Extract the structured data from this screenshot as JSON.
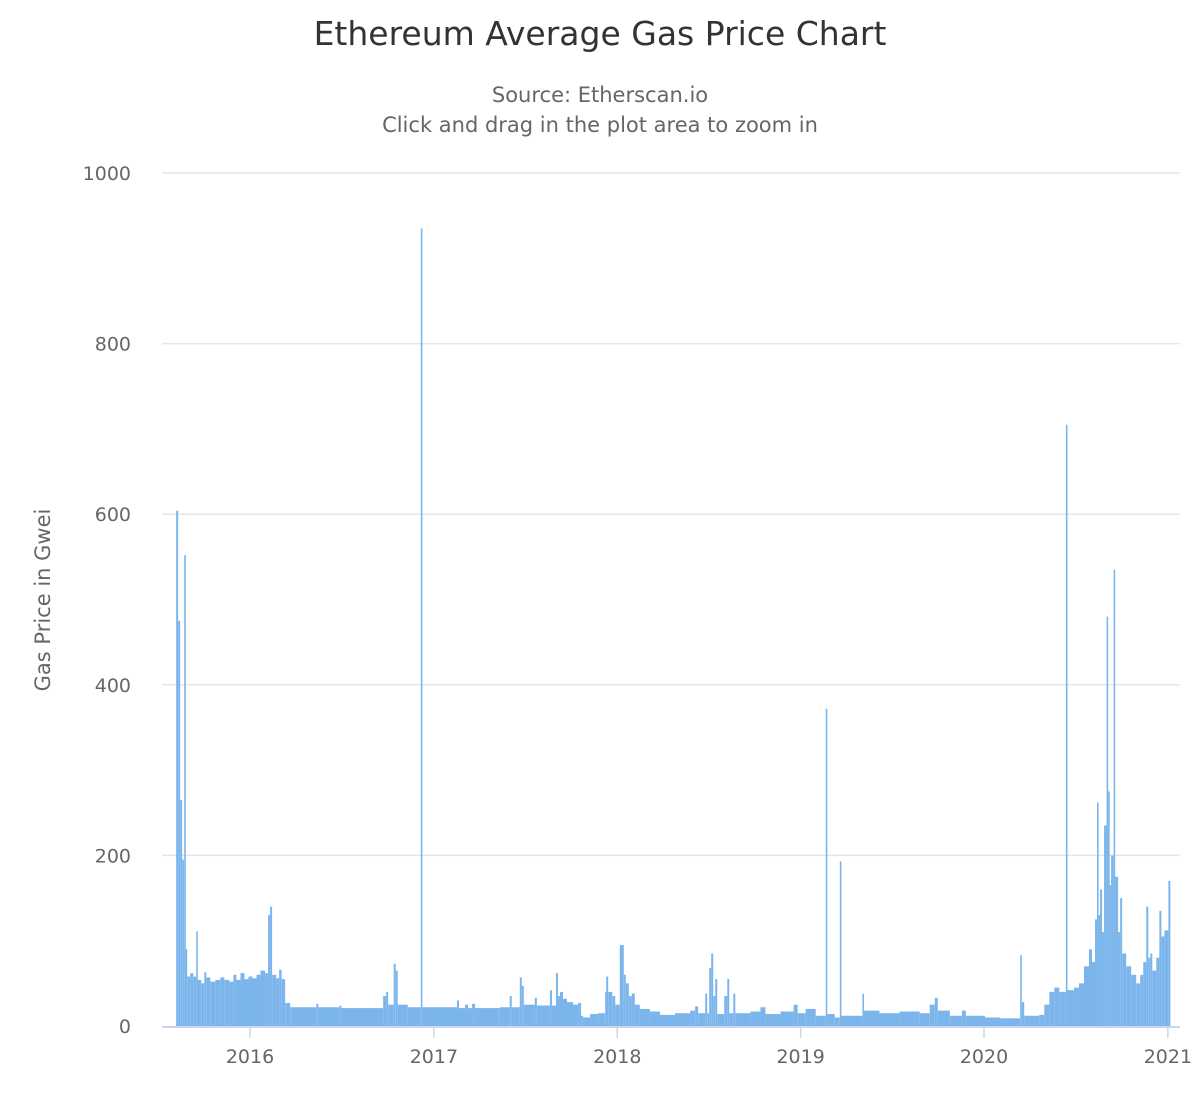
{
  "chart_data": {
    "type": "bar",
    "title": "Ethereum Average Gas Price Chart",
    "subtitle": "Source: Etherscan.io",
    "subtitle2": "Click and drag in the plot area to zoom in",
    "xlabel": "",
    "ylabel": "Gas Price in Gwei",
    "ylim": [
      0,
      1000
    ],
    "yticks": [
      0,
      200,
      400,
      600,
      800,
      1000
    ],
    "xlim": [
      "2015-07-16",
      "2021-01-20"
    ],
    "xticks": [
      {
        "date": "2016-01-01",
        "label": "2016"
      },
      {
        "date": "2017-01-01",
        "label": "2017"
      },
      {
        "date": "2018-01-01",
        "label": "2018"
      },
      {
        "date": "2019-01-01",
        "label": "2019"
      },
      {
        "date": "2020-01-01",
        "label": "2020"
      },
      {
        "date": "2021-01-01",
        "label": "2021"
      }
    ],
    "grid": true,
    "legend": "none",
    "color": "#7cb5ec",
    "end_date": "2021-01-06",
    "points": [
      [
        "2015-08-07",
        604
      ],
      [
        "2015-08-11",
        475
      ],
      [
        "2015-08-15",
        265
      ],
      [
        "2015-08-19",
        195
      ],
      [
        "2015-08-23",
        552
      ],
      [
        "2015-08-25",
        90
      ],
      [
        "2015-08-29",
        58
      ],
      [
        "2015-09-04",
        62
      ],
      [
        "2015-09-10",
        58
      ],
      [
        "2015-09-16",
        111
      ],
      [
        "2015-09-18",
        54
      ],
      [
        "2015-09-26",
        50
      ],
      [
        "2015-10-02",
        63
      ],
      [
        "2015-10-06",
        57
      ],
      [
        "2015-10-14",
        52
      ],
      [
        "2015-10-24",
        54
      ],
      [
        "2015-11-03",
        57
      ],
      [
        "2015-11-11",
        54
      ],
      [
        "2015-11-21",
        52
      ],
      [
        "2015-11-29",
        60
      ],
      [
        "2015-12-05",
        54
      ],
      [
        "2015-12-13",
        62
      ],
      [
        "2015-12-21",
        55
      ],
      [
        "2015-12-29",
        58
      ],
      [
        "2016-01-06",
        56
      ],
      [
        "2016-01-14",
        60
      ],
      [
        "2016-01-22",
        65
      ],
      [
        "2016-01-31",
        62
      ],
      [
        "2016-02-06",
        130
      ],
      [
        "2016-02-10",
        140
      ],
      [
        "2016-02-14",
        60
      ],
      [
        "2016-02-22",
        56
      ],
      [
        "2016-02-28",
        66
      ],
      [
        "2016-03-04",
        55
      ],
      [
        "2016-03-11",
        27
      ],
      [
        "2016-03-21",
        22
      ],
      [
        "2016-05-12",
        26
      ],
      [
        "2016-05-16",
        22
      ],
      [
        "2016-06-27",
        24
      ],
      [
        "2016-07-01",
        21
      ],
      [
        "2016-09-22",
        35
      ],
      [
        "2016-09-28",
        40
      ],
      [
        "2016-10-02",
        25
      ],
      [
        "2016-10-13",
        73
      ],
      [
        "2016-10-17",
        65
      ],
      [
        "2016-10-21",
        25
      ],
      [
        "2016-11-10",
        22
      ],
      [
        "2016-12-06",
        935
      ],
      [
        "2016-12-09",
        22
      ],
      [
        "2017-02-16",
        30
      ],
      [
        "2017-02-20",
        21
      ],
      [
        "2017-03-04",
        25
      ],
      [
        "2017-03-10",
        21
      ],
      [
        "2017-03-18",
        26
      ],
      [
        "2017-03-24",
        21
      ],
      [
        "2017-05-12",
        22
      ],
      [
        "2017-06-01",
        35
      ],
      [
        "2017-06-05",
        22
      ],
      [
        "2017-06-21",
        57
      ],
      [
        "2017-06-25",
        47
      ],
      [
        "2017-06-29",
        25
      ],
      [
        "2017-07-21",
        33
      ],
      [
        "2017-07-25",
        24
      ],
      [
        "2017-08-20",
        42
      ],
      [
        "2017-08-24",
        24
      ],
      [
        "2017-09-01",
        62
      ],
      [
        "2017-09-05",
        35
      ],
      [
        "2017-09-09",
        40
      ],
      [
        "2017-09-15",
        32
      ],
      [
        "2017-09-23",
        28
      ],
      [
        "2017-10-05",
        25
      ],
      [
        "2017-10-15",
        27
      ],
      [
        "2017-10-21",
        12
      ],
      [
        "2017-10-25",
        10
      ],
      [
        "2017-11-08",
        14
      ],
      [
        "2017-11-24",
        15
      ],
      [
        "2017-12-08",
        40
      ],
      [
        "2017-12-10",
        58
      ],
      [
        "2017-12-14",
        40
      ],
      [
        "2017-12-22",
        35
      ],
      [
        "2017-12-28",
        25
      ],
      [
        "2018-01-06",
        95
      ],
      [
        "2018-01-14",
        60
      ],
      [
        "2018-01-18",
        50
      ],
      [
        "2018-01-24",
        35
      ],
      [
        "2018-01-30",
        38
      ],
      [
        "2018-02-05",
        25
      ],
      [
        "2018-02-15",
        20
      ],
      [
        "2018-03-07",
        17
      ],
      [
        "2018-03-27",
        13
      ],
      [
        "2018-04-26",
        15
      ],
      [
        "2018-05-26",
        18
      ],
      [
        "2018-06-05",
        23
      ],
      [
        "2018-06-11",
        15
      ],
      [
        "2018-06-25",
        38
      ],
      [
        "2018-06-29",
        15
      ],
      [
        "2018-07-03",
        68
      ],
      [
        "2018-07-07",
        85
      ],
      [
        "2018-07-11",
        35
      ],
      [
        "2018-07-15",
        55
      ],
      [
        "2018-07-19",
        14
      ],
      [
        "2018-08-02",
        35
      ],
      [
        "2018-08-08",
        55
      ],
      [
        "2018-08-12",
        15
      ],
      [
        "2018-08-20",
        38
      ],
      [
        "2018-08-24",
        15
      ],
      [
        "2018-09-23",
        17
      ],
      [
        "2018-10-13",
        22
      ],
      [
        "2018-10-23",
        14
      ],
      [
        "2018-11-22",
        17
      ],
      [
        "2018-12-18",
        25
      ],
      [
        "2018-12-26",
        15
      ],
      [
        "2019-01-11",
        20
      ],
      [
        "2019-01-31",
        12
      ],
      [
        "2019-02-20",
        372
      ],
      [
        "2019-02-23",
        14
      ],
      [
        "2019-03-10",
        10
      ],
      [
        "2019-03-20",
        193
      ],
      [
        "2019-03-23",
        12
      ],
      [
        "2019-05-04",
        38
      ],
      [
        "2019-05-07",
        18
      ],
      [
        "2019-06-07",
        15
      ],
      [
        "2019-07-17",
        17
      ],
      [
        "2019-08-26",
        15
      ],
      [
        "2019-09-15",
        25
      ],
      [
        "2019-09-25",
        33
      ],
      [
        "2019-10-01",
        18
      ],
      [
        "2019-10-25",
        12
      ],
      [
        "2019-11-18",
        18
      ],
      [
        "2019-11-26",
        12
      ],
      [
        "2020-01-03",
        10
      ],
      [
        "2020-02-02",
        9
      ],
      [
        "2020-03-13",
        83
      ],
      [
        "2020-03-16",
        28
      ],
      [
        "2020-03-21",
        12
      ],
      [
        "2020-04-20",
        13
      ],
      [
        "2020-04-30",
        25
      ],
      [
        "2020-05-10",
        40
      ],
      [
        "2020-05-20",
        45
      ],
      [
        "2020-05-30",
        40
      ],
      [
        "2020-06-12",
        705
      ],
      [
        "2020-06-15",
        42
      ],
      [
        "2020-06-28",
        45
      ],
      [
        "2020-07-08",
        50
      ],
      [
        "2020-07-18",
        70
      ],
      [
        "2020-07-28",
        90
      ],
      [
        "2020-08-03",
        75
      ],
      [
        "2020-08-09",
        125
      ],
      [
        "2020-08-13",
        262
      ],
      [
        "2020-08-16",
        130
      ],
      [
        "2020-08-19",
        160
      ],
      [
        "2020-08-23",
        110
      ],
      [
        "2020-08-27",
        235
      ],
      [
        "2020-09-01",
        480
      ],
      [
        "2020-09-04",
        275
      ],
      [
        "2020-09-07",
        165
      ],
      [
        "2020-09-10",
        200
      ],
      [
        "2020-09-15",
        535
      ],
      [
        "2020-09-18",
        175
      ],
      [
        "2020-09-24",
        110
      ],
      [
        "2020-09-28",
        150
      ],
      [
        "2020-10-02",
        85
      ],
      [
        "2020-10-10",
        70
      ],
      [
        "2020-10-20",
        60
      ],
      [
        "2020-10-30",
        50
      ],
      [
        "2020-11-07",
        60
      ],
      [
        "2020-11-13",
        75
      ],
      [
        "2020-11-19",
        140
      ],
      [
        "2020-11-23",
        80
      ],
      [
        "2020-11-27",
        85
      ],
      [
        "2020-12-01",
        65
      ],
      [
        "2020-12-09",
        80
      ],
      [
        "2020-12-15",
        135
      ],
      [
        "2020-12-19",
        105
      ],
      [
        "2020-12-25",
        112
      ],
      [
        "2021-01-02",
        170
      ]
    ]
  }
}
